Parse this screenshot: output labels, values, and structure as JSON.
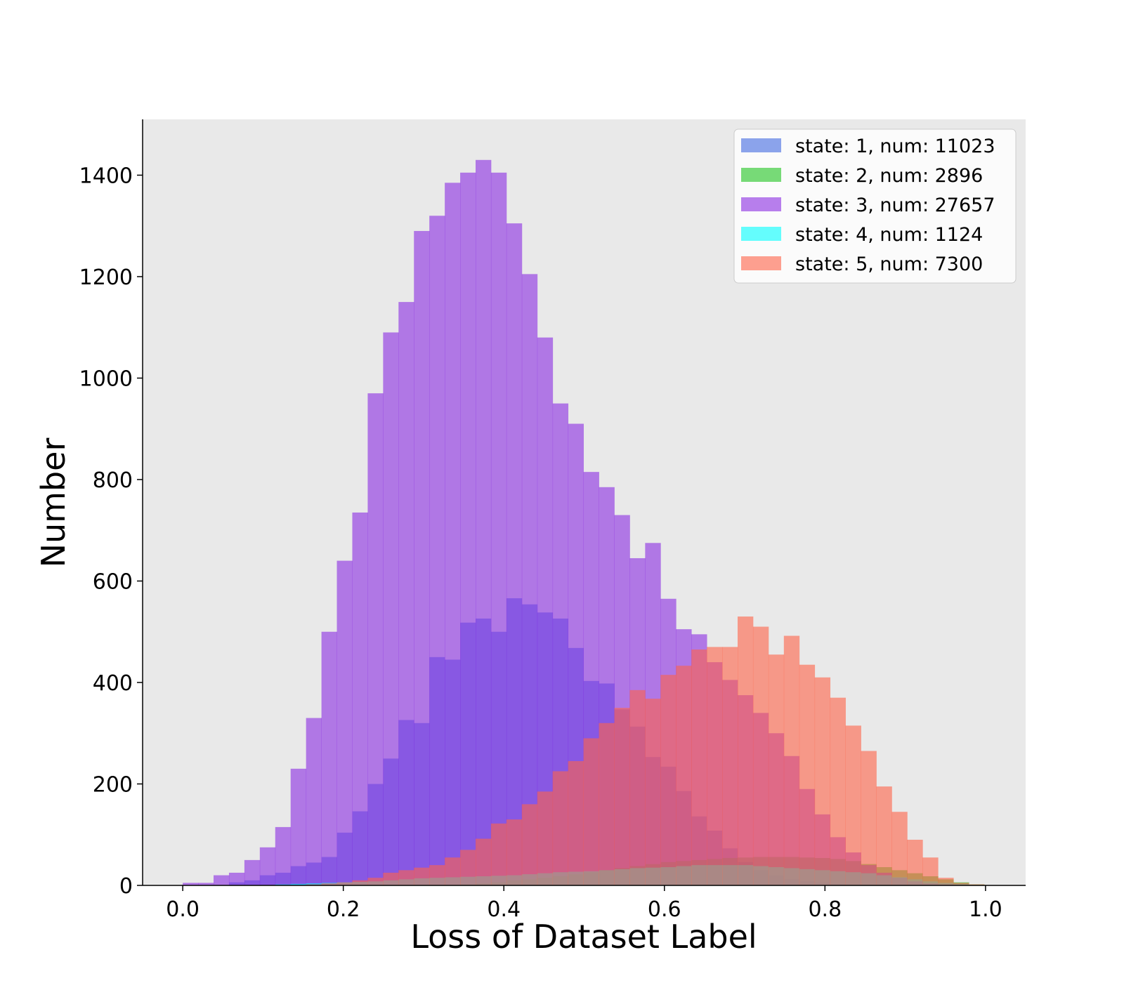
{
  "chart_data": {
    "type": "bar",
    "subtype": "overlaid-histogram",
    "title": "",
    "xlabel": "Loss of Dataset Label",
    "ylabel": "Number",
    "xlim": [
      -0.05,
      1.05
    ],
    "ylim": [
      0,
      1510
    ],
    "xticks": [
      0.0,
      0.2,
      0.4,
      0.6,
      0.8,
      1.0
    ],
    "xtick_labels": [
      "0.0",
      "0.2",
      "0.4",
      "0.6",
      "0.8",
      "1.0"
    ],
    "yticks": [
      0,
      200,
      400,
      600,
      800,
      1000,
      1200,
      1400
    ],
    "ytick_labels": [
      "0",
      "200",
      "400",
      "600",
      "800",
      "1000",
      "1200",
      "1400"
    ],
    "grid": false,
    "background": "#e9e9e9",
    "legend_position": "top-right",
    "bins": {
      "start": 0.0,
      "width": 0.0192,
      "count": 52
    },
    "series": [
      {
        "name": "state: 1, num: 11023",
        "color": "#4169e1",
        "values": [
          0,
          0,
          0,
          6,
          10,
          20,
          25,
          38,
          45,
          56,
          104,
          146,
          200,
          250,
          326,
          320,
          450,
          445,
          518,
          526,
          500,
          566,
          554,
          538,
          526,
          468,
          403,
          398,
          347,
          313,
          253,
          234,
          186,
          136,
          108,
          73,
          46,
          30,
          20,
          12,
          8,
          5,
          3,
          2,
          1,
          0,
          0,
          0,
          0,
          0,
          0,
          0
        ]
      },
      {
        "name": "state: 2, num: 2896",
        "color": "#1fc41f",
        "values": [
          0,
          0,
          0,
          0,
          0,
          0,
          0,
          0,
          0,
          0,
          0,
          0,
          0,
          0,
          0,
          0,
          0,
          0,
          2,
          4,
          6,
          10,
          12,
          15,
          18,
          22,
          26,
          30,
          34,
          38,
          42,
          46,
          48,
          50,
          52,
          54,
          55,
          56,
          56,
          56,
          55,
          54,
          52,
          48,
          42,
          36,
          30,
          24,
          18,
          12,
          6,
          2
        ]
      },
      {
        "name": "state: 3, num: 27657",
        "color": "#8a2be2",
        "values": [
          5,
          5,
          20,
          25,
          50,
          75,
          115,
          230,
          330,
          500,
          640,
          735,
          970,
          1090,
          1150,
          1290,
          1320,
          1385,
          1405,
          1430,
          1405,
          1305,
          1205,
          1080,
          950,
          910,
          815,
          785,
          730,
          645,
          675,
          565,
          505,
          495,
          440,
          405,
          375,
          340,
          300,
          255,
          190,
          140,
          95,
          65,
          40,
          25,
          15,
          8,
          4,
          2,
          1,
          0
        ]
      },
      {
        "name": "state: 4, num: 1124",
        "color": "#00ffff",
        "values": [
          0,
          0,
          0,
          0,
          0,
          0,
          2,
          3,
          4,
          5,
          6,
          7,
          8,
          10,
          12,
          14,
          15,
          16,
          17,
          18,
          19,
          20,
          22,
          24,
          26,
          27,
          28,
          30,
          32,
          34,
          35,
          36,
          38,
          40,
          40,
          40,
          40,
          38,
          36,
          34,
          32,
          30,
          28,
          26,
          24,
          20,
          16,
          12,
          8,
          5,
          3,
          1
        ]
      },
      {
        "name": "state: 5, num: 7300",
        "color": "#ff6347",
        "values": [
          0,
          0,
          0,
          0,
          0,
          0,
          0,
          0,
          2,
          4,
          6,
          10,
          15,
          25,
          30,
          35,
          40,
          55,
          70,
          92,
          122,
          130,
          160,
          185,
          225,
          245,
          290,
          320,
          350,
          385,
          368,
          415,
          433,
          465,
          470,
          470,
          530,
          510,
          455,
          492,
          435,
          410,
          370,
          315,
          265,
          195,
          145,
          90,
          55,
          15,
          5,
          2
        ]
      }
    ]
  }
}
